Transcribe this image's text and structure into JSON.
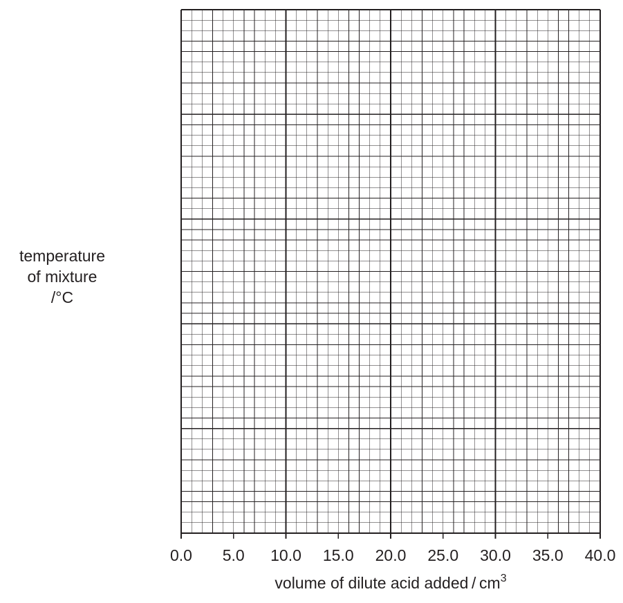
{
  "chart_data": {
    "type": "scatter",
    "title": "",
    "ylabel_lines": [
      "temperature",
      "of mixture",
      "/°C"
    ],
    "xlabel": "volume of dilute acid added / cm",
    "xlabel_superscript": "3",
    "xlim": [
      0,
      40
    ],
    "x_ticks": [
      "0.0",
      "5.0",
      "10.0",
      "15.0",
      "20.0",
      "25.0",
      "30.0",
      "35.0",
      "40.0"
    ],
    "y_ticks": [],
    "series": [],
    "grid": {
      "major_columns": 4,
      "major_rows": 5,
      "minor_per_major": 10
    },
    "colors": {
      "grid_major": "#231f20",
      "grid_minor": "#231f20",
      "text": "#231f20"
    }
  }
}
